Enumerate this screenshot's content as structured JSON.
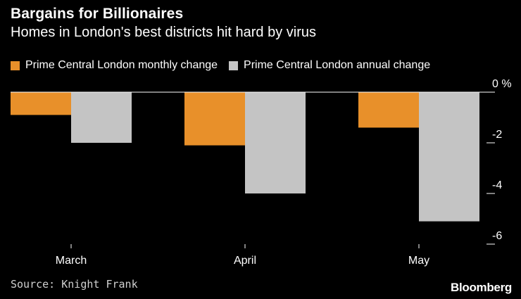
{
  "chart_data": {
    "type": "bar",
    "title": "Bargains for Billionaires",
    "subtitle": "Homes in London's best districts hit hard by virus",
    "categories": [
      "March",
      "April",
      "May"
    ],
    "series": [
      {
        "name": "Prime Central London monthly change",
        "color": "#e8902a",
        "values": [
          -0.9,
          -2.1,
          -1.4
        ]
      },
      {
        "name": "Prime Central London annual change",
        "color": "#c4c4c4",
        "values": [
          -2.0,
          -4.0,
          -5.1
        ]
      }
    ],
    "ylim": [
      -6,
      0
    ],
    "yticks": [
      {
        "value": 0,
        "label": "0 %"
      },
      {
        "value": -2,
        "label": "-2"
      },
      {
        "value": -4,
        "label": "-4"
      },
      {
        "value": -6,
        "label": "-6"
      }
    ],
    "xlabel": "",
    "ylabel": "",
    "source": "Source: Knight Frank",
    "brand": "Bloomberg"
  }
}
